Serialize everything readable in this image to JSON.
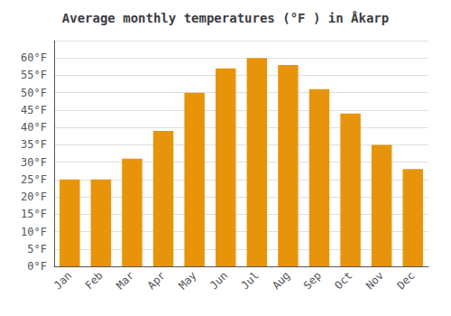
{
  "chart_data": {
    "type": "bar",
    "title": "Average monthly temperatures (°F ) in Åkarp",
    "categories": [
      "Jan",
      "Feb",
      "Mar",
      "Apr",
      "May",
      "Jun",
      "Jul",
      "Aug",
      "Sep",
      "Oct",
      "Nov",
      "Dec"
    ],
    "values": [
      25,
      25,
      31,
      39,
      50,
      57,
      60,
      58,
      51,
      44,
      35,
      28
    ],
    "color": "#E8940A",
    "ylim": [
      0,
      65
    ],
    "yticks": [
      {
        "value": 0,
        "label": "0°F"
      },
      {
        "value": 5,
        "label": "5°F"
      },
      {
        "value": 10,
        "label": "10°F"
      },
      {
        "value": 15,
        "label": "15°F"
      },
      {
        "value": 20,
        "label": "20°F"
      },
      {
        "value": 25,
        "label": "25°F"
      },
      {
        "value": 30,
        "label": "30°F"
      },
      {
        "value": 35,
        "label": "35°F"
      },
      {
        "value": 40,
        "label": "40°F"
      },
      {
        "value": 45,
        "label": "45°F"
      },
      {
        "value": 50,
        "label": "50°F"
      },
      {
        "value": 55,
        "label": "55°F"
      },
      {
        "value": 60,
        "label": "60°F"
      }
    ],
    "grid": true
  }
}
